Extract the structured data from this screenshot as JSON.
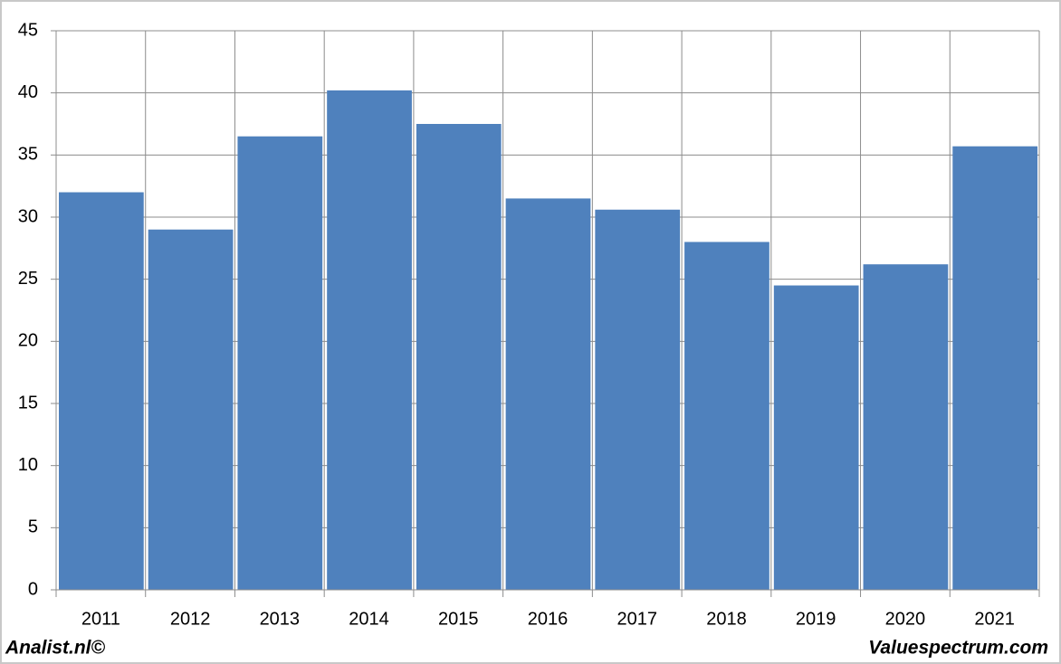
{
  "chart_data": {
    "type": "bar",
    "categories": [
      "2011",
      "2012",
      "2013",
      "2014",
      "2015",
      "2016",
      "2017",
      "2018",
      "2019",
      "2020",
      "2021"
    ],
    "values": [
      32,
      29,
      36.5,
      40.2,
      37.5,
      31.5,
      30.6,
      28,
      24.5,
      26.2,
      35.7
    ],
    "color": "#4f81bd",
    "ylim": [
      0,
      45
    ],
    "yticks": [
      0,
      5,
      10,
      15,
      20,
      25,
      30,
      35,
      40,
      45
    ],
    "grid": true,
    "footer_left": "Analist.nl©",
    "footer_right": "Valuespectrum.com"
  }
}
